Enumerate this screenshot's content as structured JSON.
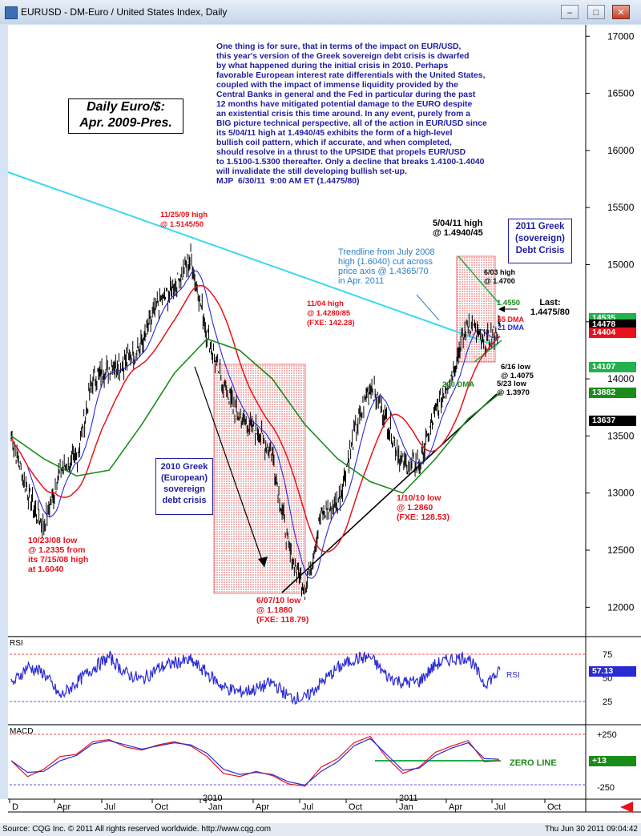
{
  "window": {
    "title": "EURUSD - DM-Euro / United States Index, Daily",
    "buttons": [
      "–",
      "□",
      "✕"
    ]
  },
  "footer": {
    "left": "Source: CQG Inc. © 2011 All rights reserved worldwide. http://www.cqg.com",
    "right": "Thu Jun 30 2011 09:04:42"
  },
  "commentary": "One thing is for sure, that in terms of the impact on EUR/USD,\nthis year's version of the Greek sovereign debt crisis is dwarfed\nby what happened during the initial crisis in 2010. Perhaps\nfavorable European interest rate differentials with the United States,\ncoupled with the impact of immense liquidity provided by the\nCentral Banks in general and the Fed in particular during the past\n12 months have mitigated potential damage to the EURO despite\nan existential crisis this time around. In any event, purely from a\nBIG picture technical perspective, all of the action in EUR/USD since\nits 5/04/11 high at 1.4940/45 exhibits the form of a high-level\nbullish coil pattern, which if accurate, and when completed,\nshould resolve in a thrust to the UPSIDE that propels EUR/USD\nto 1.5100-1.5300 thereafter. Only a decline that breaks 1.4100-1.4040\nwill invalidate the still developing bullish set-up.\nMJP  6/30/11  9:00 AM ET (1.4475/80)",
  "boxes": {
    "daily": "Daily Euro/$:\nApr. 2009-Pres.",
    "greek2011": "2011 Greek\n(sovereign)\nDebt Crisis",
    "greek2010": "2010 Greek\n(European)\nsovereign\ndebt crisis"
  },
  "annotations": {
    "low_2008": "10/23/08 low\n@ 1.2335 from\nits 7/15/08 high\nat 1.6040",
    "high_2009": "11/25/09 high\n@ 1.5145/50",
    "low_2010": "6/07/10 low\n@ 1.1880\n(FXE: 118.79)",
    "high_1104": "11/04 high\n@ 1.4280/85\n(FXE: 142.28)",
    "low_0110": "1/10/10 low\n@ 1.2860\n(FXE: 128.53)",
    "high_0504": "5/04/11 high\n@ 1.4940/45",
    "high_0603": "6/03 high\n@ 1.4700",
    "low_0616": "6/16 low\n@ 1.4075",
    "low_0523": "5/23 low\n@ 1.3970",
    "trendline": "Trendline from July 2008\nhigh (1.6040) cut across\nprice axis @ 1.4365/70\nin Apr. 2011",
    "level_14550": "1.4550",
    "last": "Last:\n1.4475/80",
    "dma55": "55 DMA",
    "dma21": "21 DMA",
    "dma200": "200 DMA",
    "rsi": "RSI",
    "zero_line": "ZERO LINE"
  },
  "panels": {
    "rsi_title": "RSI",
    "macd_title": "MACD"
  },
  "price_tags": [
    {
      "value": "14535",
      "color": "#22b14c"
    },
    {
      "value": "14478",
      "color": "#000000"
    },
    {
      "value": "14404",
      "color": "#e8121b"
    },
    {
      "value": "14107",
      "color": "#22b14c"
    },
    {
      "value": "13882",
      "color": "#1a8c1a"
    },
    {
      "value": "13637",
      "color": "#000000"
    }
  ],
  "rsi_tag": {
    "value": "57.13",
    "color": "#2a2ad4"
  },
  "macd_tag": {
    "value": "+13",
    "color": "#1a8c1a"
  },
  "chart_data": [
    {
      "type": "candlestick",
      "title": "EURUSD - DM-Euro / United States Index, Daily",
      "y_axis_ticks": [
        12000,
        12500,
        13000,
        13500,
        14000,
        14500,
        15000,
        15500,
        16000,
        16500,
        17000
      ],
      "ylim": [
        11750,
        17100
      ],
      "x_axis_labels": [
        "D",
        "Apr",
        "Jul",
        "Oct",
        "2010",
        "Jan",
        "Apr",
        "Jul",
        "Oct",
        "2011",
        "Jan",
        "Apr",
        "Jul",
        "Oct"
      ],
      "series": [
        {
          "name": "EURUSD",
          "color": "#000000",
          "dates": [
            "2008-12",
            "2009-01",
            "2009-02",
            "2009-03",
            "2009-04",
            "2009-05",
            "2009-06",
            "2009-07",
            "2009-08",
            "2009-09",
            "2009-10",
            "2009-11",
            "2009-12",
            "2010-01",
            "2010-02",
            "2010-03",
            "2010-04",
            "2010-05",
            "2010-06",
            "2010-07",
            "2010-08",
            "2010-09",
            "2010-10",
            "2010-11",
            "2010-12",
            "2011-01",
            "2011-02",
            "2011-03",
            "2011-04",
            "2011-05",
            "2011-06"
          ],
          "values": [
            13500,
            13000,
            12700,
            13200,
            13300,
            14000,
            14100,
            14150,
            14300,
            14650,
            14800,
            15050,
            14400,
            13950,
            13650,
            13550,
            13350,
            12500,
            12150,
            12800,
            12900,
            13500,
            13950,
            13650,
            13250,
            13250,
            13700,
            14050,
            14500,
            14300,
            14450
          ]
        },
        {
          "name": "21 DMA",
          "color": "#2a2ad4"
        },
        {
          "name": "55 DMA",
          "color": "#e8121b"
        },
        {
          "name": "200 DMA",
          "color": "#1a8c1a",
          "dates": [
            "2008-12",
            "2009-02",
            "2009-04",
            "2009-06",
            "2009-08",
            "2009-10",
            "2009-12",
            "2010-02",
            "2010-04",
            "2010-06",
            "2010-08",
            "2010-10",
            "2010-12",
            "2011-02",
            "2011-04",
            "2011-06"
          ],
          "values": [
            13500,
            13300,
            13150,
            13200,
            13600,
            14050,
            14350,
            14250,
            14000,
            13600,
            13300,
            13100,
            13000,
            13300,
            13650,
            13880
          ]
        }
      ]
    },
    {
      "type": "line",
      "title": "RSI",
      "y_axis_ticks": [
        25,
        50,
        75
      ],
      "series": [
        {
          "name": "RSI",
          "color": "#2a2ad4",
          "values": [
            42,
            62,
            55,
            30,
            45,
            60,
            72,
            55,
            48,
            60,
            66,
            68,
            55,
            40,
            35,
            38,
            45,
            30,
            28,
            45,
            60,
            70,
            72,
            52,
            45,
            46,
            64,
            70,
            72,
            44,
            57
          ]
        }
      ]
    },
    {
      "type": "line",
      "title": "MACD",
      "y_axis_ticks": [
        -250,
        250
      ],
      "series": [
        {
          "name": "MACD",
          "color": "#e8121b",
          "values": [
            0,
            -150,
            -80,
            40,
            60,
            180,
            200,
            130,
            100,
            150,
            180,
            140,
            40,
            -120,
            -150,
            -100,
            -140,
            -220,
            -240,
            -60,
            20,
            170,
            230,
            30,
            -120,
            -60,
            80,
            140,
            190,
            -10,
            0
          ]
        },
        {
          "name": "Signal",
          "color": "#2a2ad4",
          "values": [
            0,
            -110,
            -100,
            0,
            50,
            160,
            190,
            150,
            110,
            140,
            170,
            150,
            70,
            -80,
            -130,
            -110,
            -130,
            -200,
            -230,
            -100,
            -10,
            140,
            210,
            60,
            -90,
            -70,
            50,
            120,
            170,
            20,
            13
          ]
        }
      ]
    }
  ]
}
